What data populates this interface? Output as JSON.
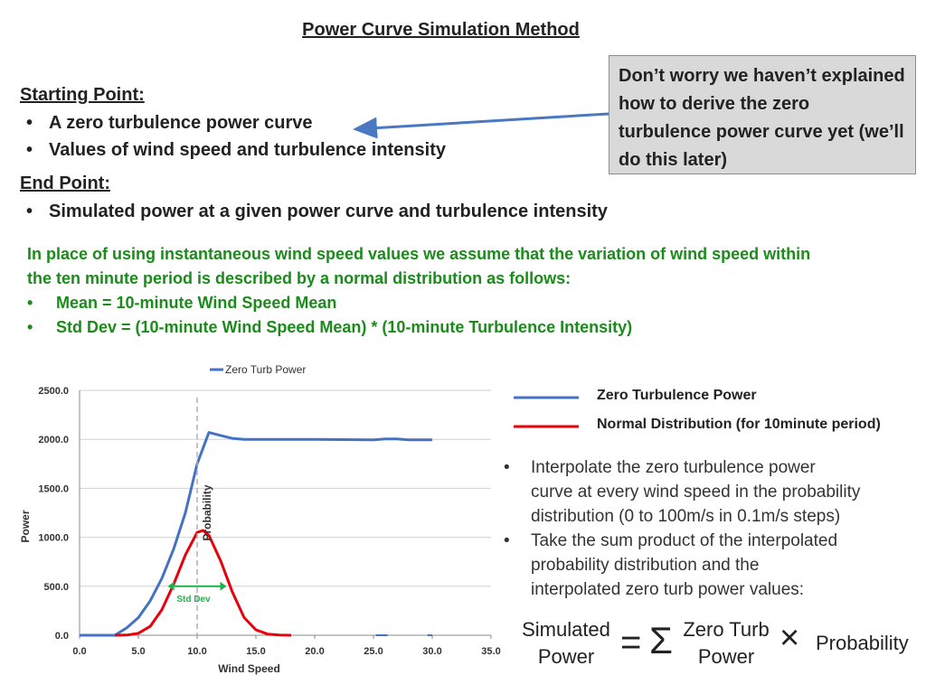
{
  "title": "Power Curve Simulation Method",
  "starting": {
    "heading": "Starting Point:",
    "items": [
      "A zero turbulence power curve",
      "Values of wind speed and turbulence intensity"
    ]
  },
  "ending": {
    "heading": "End Point:",
    "items": [
      "Simulated power at a given power curve and turbulence intensity"
    ]
  },
  "note": "Don’t worry we haven’t explained how to derive the zero turbulence power curve yet (we’ll do this later)",
  "assumption": {
    "line1": "In place of using instantaneous wind speed values we assume that the variation of wind speed within",
    "line2": "the ten minute period is described by a normal distribution as follows:",
    "bullets": [
      "Mean = 10-minute Wind Speed Mean",
      "Std Dev = (10-minute Wind Speed Mean) * (10-minute Turbulence Intensity)"
    ]
  },
  "legend": {
    "zero": "Zero Turbulence Power",
    "normal": "Normal Distribution (for 10minute period)",
    "zero_color": "#4472c4",
    "normal_color": "#e8000b"
  },
  "steps": [
    [
      "Interpolate the zero turbulence power",
      "curve at every wind speed in the probability",
      "distribution (0 to 100m/s in 0.1m/s steps)"
    ],
    [
      "Take the sum product of the interpolated",
      "probability distribution and the",
      "interpolated zero turb power values:"
    ]
  ],
  "formula": {
    "lhs": [
      "Simulated",
      "Power"
    ],
    "equals": "=",
    "sigma": "Σ",
    "term1": [
      "Zero Turb",
      "Power"
    ],
    "times": "×",
    "term2": "Probability"
  },
  "chart_data": {
    "type": "line",
    "legend_entry": "Zero Turb Power",
    "xlabel": "Wind Speed",
    "ylabel": "Power",
    "secondary_label": "Probability",
    "annotation": "Std Dev",
    "xlim": [
      0,
      35
    ],
    "ylim": [
      0,
      2500
    ],
    "xticks": [
      "0.0",
      "5.0",
      "10.0",
      "15.0",
      "20.0",
      "25.0",
      "30.0",
      "35.0"
    ],
    "yticks": [
      "0.0",
      "500.0",
      "1000.0",
      "1500.0",
      "2000.0",
      "2500.0"
    ],
    "grid": "horizontal",
    "series": [
      {
        "name": "Zero Turb Power",
        "color": "#4472c4",
        "x": [
          0,
          3,
          4,
          5,
          6,
          7,
          8,
          9,
          10,
          11,
          12,
          13,
          14,
          15,
          20,
          25,
          26,
          27,
          28,
          29,
          30
        ],
        "y": [
          0,
          0,
          75,
          180,
          350,
          580,
          880,
          1250,
          1750,
          2070,
          2040,
          2010,
          2000,
          2000,
          2000,
          1995,
          2005,
          2005,
          1995,
          1995,
          1995
        ]
      },
      {
        "name": "Normal Distribution (for 10minute period)",
        "color": "#e8000b",
        "x": [
          3,
          4,
          5,
          6,
          7,
          8,
          9,
          10,
          10.5,
          11,
          12,
          13,
          14,
          15,
          16,
          17,
          18
        ],
        "y": [
          0,
          2,
          20,
          90,
          260,
          520,
          820,
          1050,
          1070,
          1020,
          760,
          440,
          180,
          55,
          12,
          2,
          0
        ]
      }
    ],
    "mean_line_x": 10,
    "std_dev_arrow_x": [
      7.5,
      12.5
    ]
  }
}
